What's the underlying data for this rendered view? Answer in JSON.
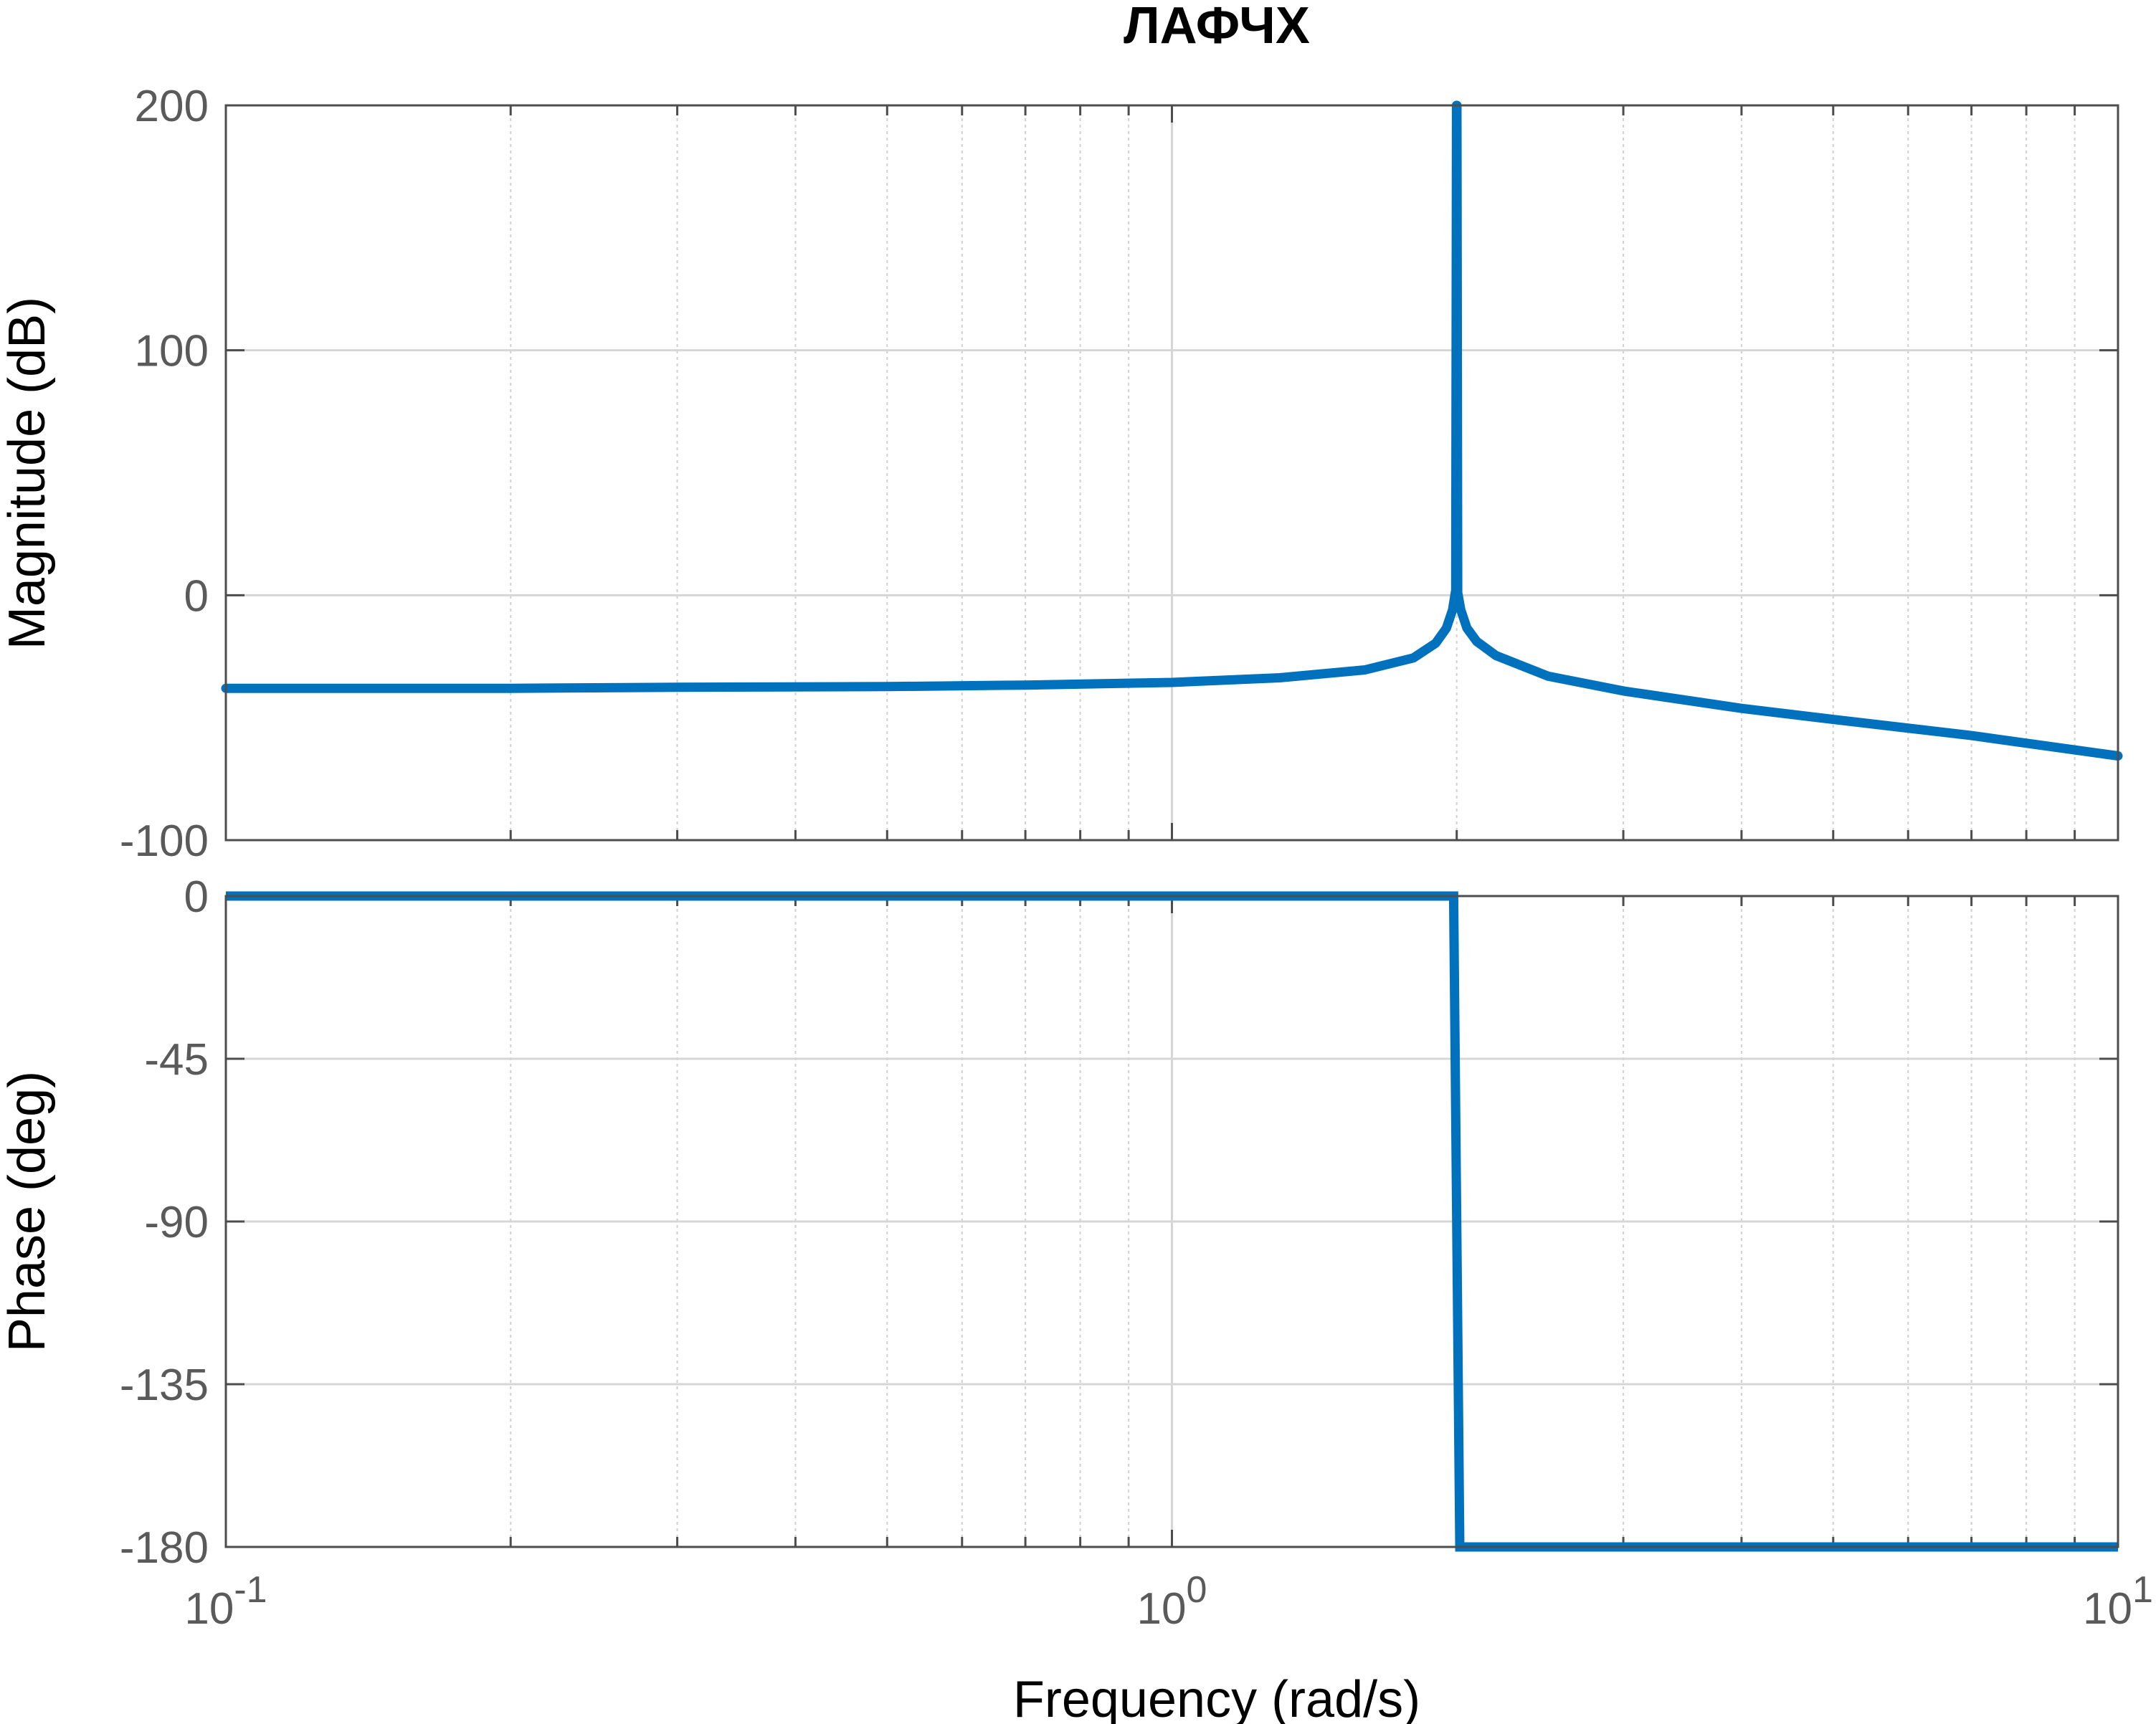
{
  "chart_data": {
    "type": "line",
    "title": "ЛАФЧХ",
    "xlabel": "Frequency  (rad/s)",
    "xscale": "log",
    "xlim": [
      0.1,
      10
    ],
    "x_ticks": [
      {
        "value": 0.1,
        "base": "10",
        "exp": "-1"
      },
      {
        "value": 1,
        "base": "10",
        "exp": "0"
      },
      {
        "value": 10,
        "base": "10",
        "exp": "1"
      }
    ],
    "grid": true,
    "line_color": "#0072BD",
    "panels": [
      {
        "name": "magnitude",
        "ylabel": "Magnitude (dB)",
        "ylim": [
          -100,
          200
        ],
        "yticks": [
          200,
          100,
          0,
          -100
        ],
        "ytick_labels": [
          "200",
          "100",
          "0",
          "-100"
        ],
        "x": [
          0.1,
          0.2,
          0.3,
          0.5,
          0.7,
          1.0,
          1.3,
          1.6,
          1.8,
          1.9,
          1.95,
          1.98,
          1.995,
          1.999,
          2.001,
          2.005,
          2.02,
          2.05,
          2.1,
          2.2,
          2.5,
          3,
          4,
          5,
          7,
          10
        ],
        "y": [
          -38,
          -38,
          -37.6,
          -37.3,
          -36.7,
          -35.6,
          -33.7,
          -30.5,
          -25.6,
          -19.6,
          -13.5,
          -6,
          2,
          200,
          200,
          1,
          -6,
          -13.4,
          -18.9,
          -24.6,
          -33.1,
          -39.1,
          -46.2,
          -50.7,
          -57.3,
          -65.6
        ]
      },
      {
        "name": "phase",
        "ylabel": "Phase (deg)",
        "ylim": [
          -180,
          0
        ],
        "yticks": [
          0,
          -45,
          -90,
          -135,
          -180
        ],
        "ytick_labels": [
          "0",
          "-45",
          "-90",
          "-135",
          "-180"
        ],
        "x": [
          0.1,
          1.985,
          2.015,
          10
        ],
        "y": [
          0,
          0,
          -180,
          -180
        ]
      }
    ]
  }
}
